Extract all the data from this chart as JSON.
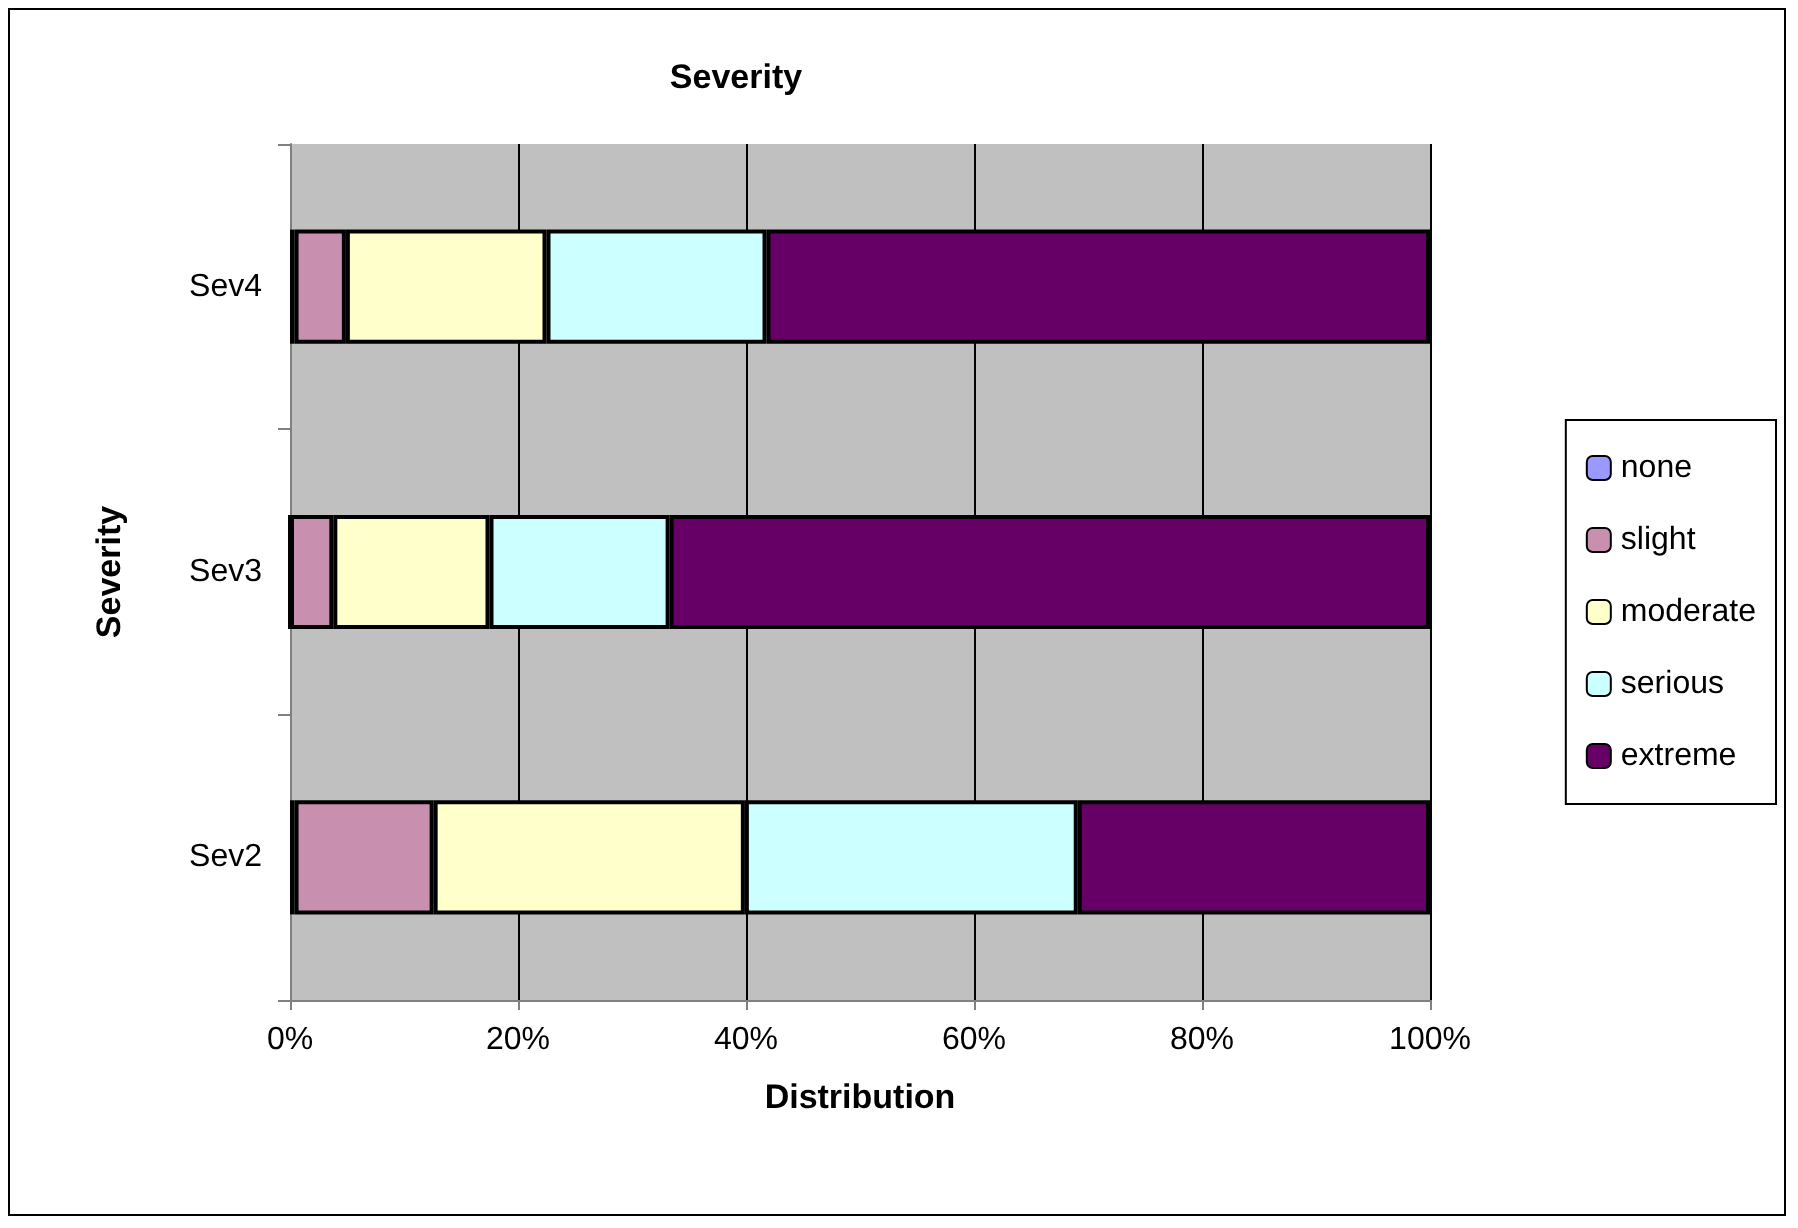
{
  "chart_data": {
    "type": "bar",
    "title": "Severity",
    "xlabel": "Distribution",
    "ylabel": "Severity",
    "orientation": "horizontal",
    "stacked": true,
    "categories": [
      "Sev4",
      "Sev3",
      "Sev2"
    ],
    "series": [
      {
        "name": "none",
        "color": "#9999ff",
        "values": [
          0.4,
          0,
          0.4
        ]
      },
      {
        "name": "slight",
        "color": "#c98fae",
        "values": [
          4.5,
          3.8,
          12.2
        ]
      },
      {
        "name": "moderate",
        "color": "#ffffcc",
        "values": [
          17.6,
          13.7,
          27.3
        ]
      },
      {
        "name": "serious",
        "color": "#ccffff",
        "values": [
          19.3,
          15.8,
          29.2
        ]
      },
      {
        "name": "extreme",
        "color": "#660066",
        "values": [
          58.2,
          66.7,
          30.9
        ]
      }
    ],
    "xlim": [
      0,
      100
    ],
    "xticks": [
      {
        "value": 0,
        "label": "0%"
      },
      {
        "value": 20,
        "label": "20%"
      },
      {
        "value": 40,
        "label": "40%"
      },
      {
        "value": 60,
        "label": "60%"
      },
      {
        "value": 80,
        "label": "80%"
      },
      {
        "value": 100,
        "label": "100%"
      }
    ],
    "grid": "x",
    "legend": "right"
  }
}
